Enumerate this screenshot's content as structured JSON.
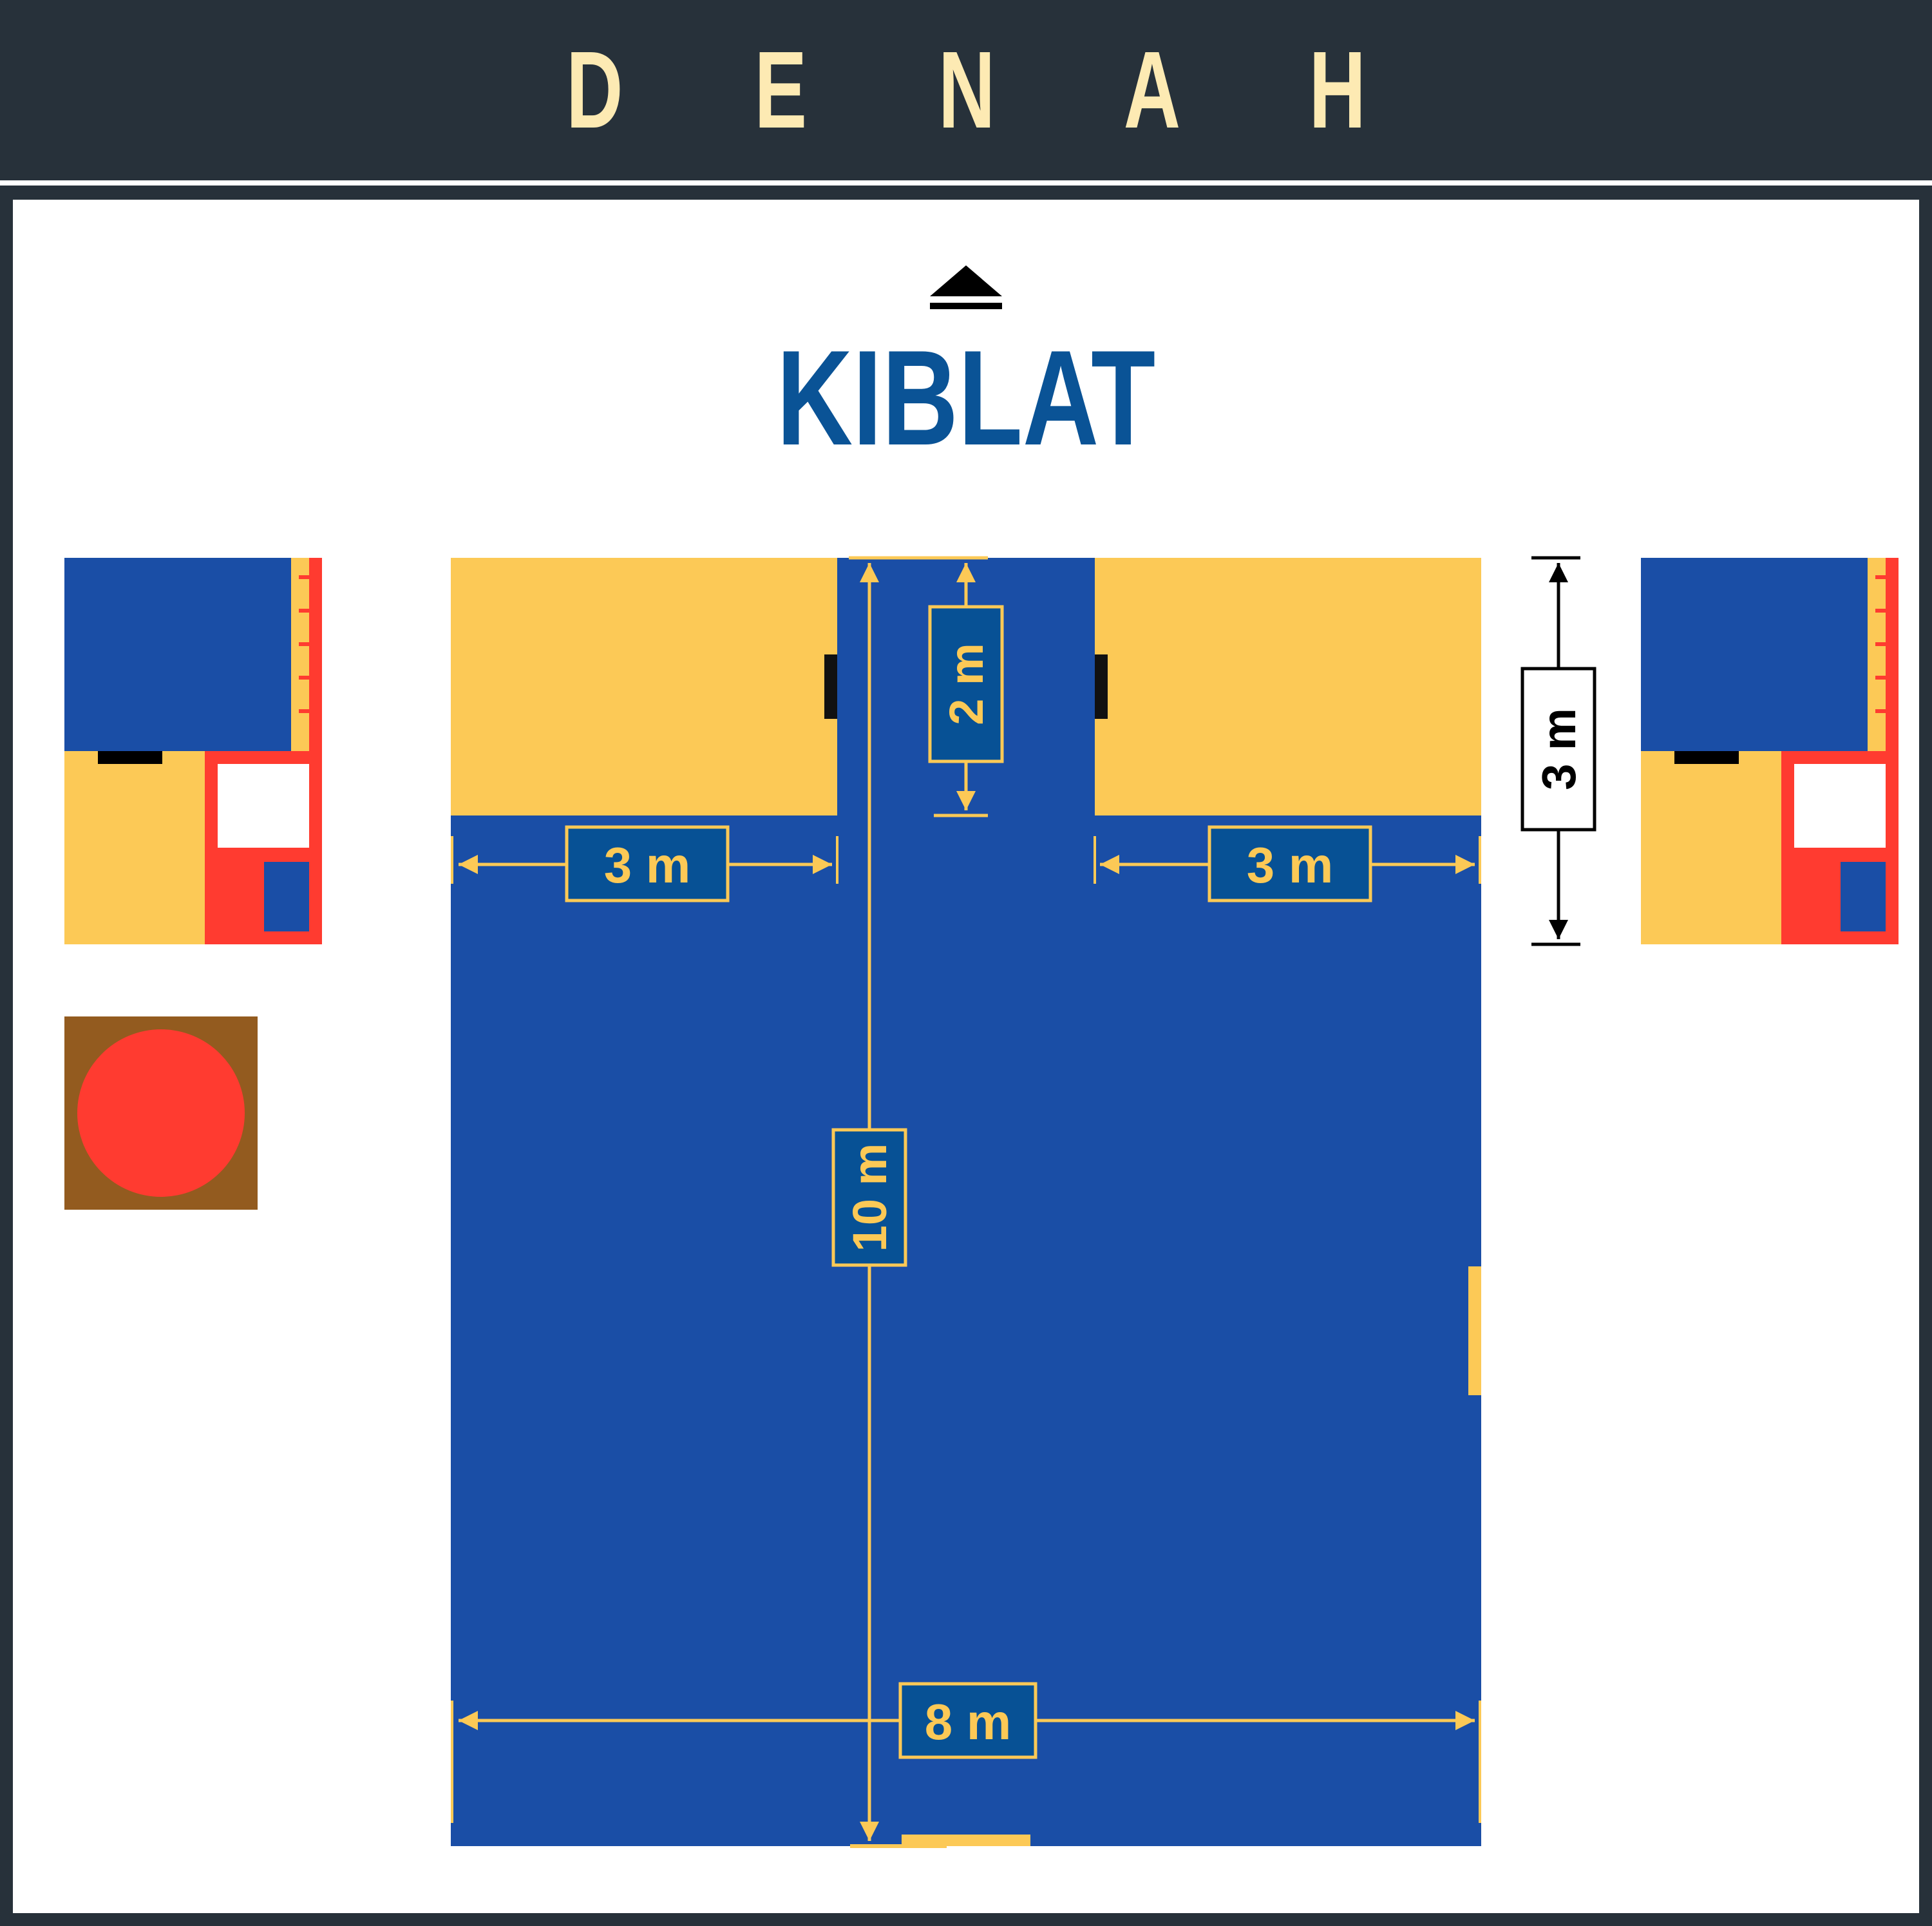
{
  "header": {
    "title": "D E N A H"
  },
  "qibla": {
    "label": "KIBLAT"
  },
  "dimensions": {
    "wing_left_width": "3 m",
    "wing_right_width": "3 m",
    "mihrab_depth": "2 m",
    "hall_length": "10 m",
    "hall_width": "8 m",
    "building_depth": "3 m"
  },
  "colors": {
    "background": "#27313a",
    "header_text": "#fdeab3",
    "qibla_text": "#0a5396",
    "hall_blue": "#1a4ea6",
    "accent_yellow": "#fcc956",
    "label_fill": "#075195",
    "red": "#ff3b30",
    "brown": "#935b1f"
  }
}
